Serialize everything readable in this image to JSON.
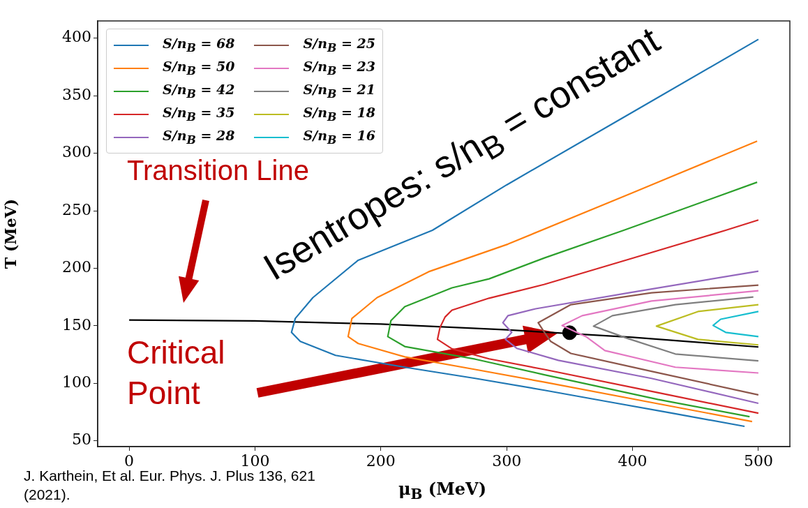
{
  "chart_data": {
    "type": "line",
    "xlabel": "μ$_{B}$ (MeV)",
    "ylabel": "T (MeV)",
    "xlim": [
      -25,
      525
    ],
    "ylim": [
      45,
      415
    ],
    "xticks": [
      0,
      100,
      200,
      300,
      400,
      500
    ],
    "yticks": [
      50,
      100,
      150,
      200,
      250,
      300,
      350,
      400
    ],
    "grid": false,
    "legend": "top left",
    "annotations": [
      "Transition Line",
      "Critical Point",
      "Isentropes: s/n$_{B}$ = constant",
      "J. Karthein, Et al. Eur. Phys. J. Plus 136, 621 (2021)."
    ],
    "series": [
      {
        "name": "S/n$_{B}$ = 68",
        "color": "#1f77b4",
        "x": [
          489,
          430,
          380,
          330,
          275,
          219,
          164,
          136,
          129,
          132,
          146,
          182,
          241,
          300,
          400,
          500
        ],
        "values": [
          62.6,
          74.3,
          84.1,
          94,
          104.3,
          114,
          124.3,
          136.4,
          144.3,
          156.4,
          174.5,
          207,
          233,
          272.5,
          335.7,
          399
        ]
      },
      {
        "name": "S/n$_{B}$ = 50",
        "color": "#ff7f0e",
        "x": [
          495,
          420,
          330,
          275,
          219,
          182,
          174,
          177,
          197,
          238,
          301,
          400,
          499
        ],
        "values": [
          66.8,
          82.3,
          101,
          112,
          123,
          134.6,
          140.6,
          156.4,
          174.5,
          197,
          221,
          265.7,
          310.5
        ]
      },
      {
        "name": "S/n$_{B}$ = 42",
        "color": "#2ca02c",
        "x": [
          493,
          420,
          330,
          275,
          219,
          205.5,
          208,
          219,
          256.5,
          286,
          330,
          393,
          499
        ],
        "values": [
          71,
          86,
          107.4,
          121,
          132,
          140.6,
          154.5,
          166.6,
          183,
          190.8,
          209,
          233,
          274.8
        ]
      },
      {
        "name": "S/n$_{B}$ = 35",
        "color": "#d62728",
        "x": [
          500,
          420,
          330,
          286,
          256.5,
          245,
          247,
          251,
          256.5,
          286,
          330,
          400,
          474,
          500
        ],
        "values": [
          74,
          91.9,
          112,
          121.3,
          130,
          138.2,
          148.5,
          157.6,
          163.6,
          174,
          186,
          208.8,
          233,
          242
        ]
      },
      {
        "name": "S/n$_{B}$ = 28",
        "color": "#9467bd",
        "x": [
          500,
          415,
          341,
          308,
          299,
          304,
          297,
          301,
          323,
          397,
          500
        ],
        "values": [
          82.6,
          104.3,
          120,
          130.4,
          138.2,
          144.3,
          152.7,
          158.8,
          164.8,
          178.7,
          197.5
        ]
      },
      {
        "name": "S/n$_{B}$ = 25",
        "color": "#8c564b",
        "x": [
          500,
          415,
          351,
          335,
          330,
          325,
          351,
          415,
          500
        ],
        "values": [
          90,
          110.4,
          126,
          136.4,
          144.3,
          152.7,
          168.4,
          178.7,
          185.4
        ]
      },
      {
        "name": "S/n$_{B}$ = 23",
        "color": "#e377c2",
        "x": [
          500,
          434,
          378,
          363,
          344,
          360,
          415,
          500
        ],
        "values": [
          109,
          114,
          128.5,
          140.6,
          150.3,
          158.8,
          171.5,
          180.5
        ]
      },
      {
        "name": "S/n$_{B}$ = 21",
        "color": "#7f7f7f",
        "x": [
          500,
          434,
          395,
          369,
          384,
          434,
          496
        ],
        "values": [
          119.5,
          125.5,
          139.4,
          149.7,
          158.8,
          168.4,
          175
        ]
      },
      {
        "name": "S/n$_{B}$ = 18",
        "color": "#bcbd22",
        "x": [
          500,
          452,
          419,
          452,
          500
        ],
        "values": [
          133.4,
          138.2,
          149.7,
          162.4,
          168.4
        ]
      },
      {
        "name": "S/n$_{B}$ = 16",
        "color": "#17becf",
        "x": [
          500,
          474,
          464,
          470,
          500
        ],
        "values": [
          140.6,
          144.3,
          150.3,
          155.7,
          162.4
        ]
      },
      {
        "color": "#000000",
        "x": [
          0,
          100,
          200,
          300,
          400,
          500
        ],
        "values": [
          155,
          154.2,
          151.5,
          146.5,
          140,
          131.6
        ]
      },
      {
        "type": "scatter",
        "marker": "circle",
        "color": "#000000",
        "x": [
          350
        ],
        "values": [
          144
        ]
      }
    ]
  }
}
